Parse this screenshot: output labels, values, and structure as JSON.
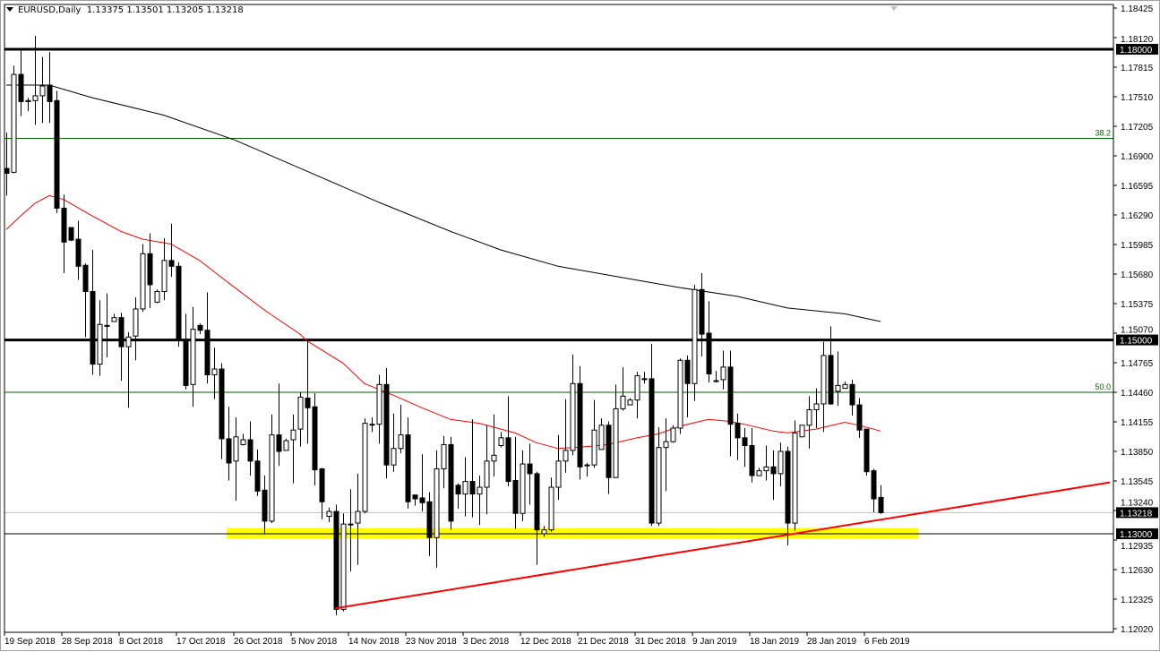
{
  "header": {
    "symbol": "EURUSD,Daily",
    "ohlc": "1.13375 1.13501 1.13205 1.13218",
    "menu_icon": "triangle-down-icon"
  },
  "chart_data": {
    "type": "candlestick",
    "title": "EURUSD,Daily",
    "ylim": [
      1.1202,
      1.18425
    ],
    "grid": false,
    "y_tick_labels": [
      "1.18425",
      "1.18120",
      "1.17815",
      "1.17510",
      "1.17205",
      "1.16900",
      "1.16595",
      "1.16290",
      "1.15985",
      "1.15680",
      "1.15375",
      "1.15070",
      "1.14765",
      "1.14460",
      "1.14155",
      "1.13850",
      "1.13545",
      "1.13240",
      "1.12935",
      "1.12630",
      "1.12325",
      "1.12020"
    ],
    "x_tick_labels": [
      {
        "bar": 0,
        "label": "19 Sep 2018"
      },
      {
        "bar": 8,
        "label": "28 Sep 2018"
      },
      {
        "bar": 16,
        "label": "8 Oct 2018"
      },
      {
        "bar": 24,
        "label": "17 Oct 2018"
      },
      {
        "bar": 32,
        "label": "26 Oct 2018"
      },
      {
        "bar": 40,
        "label": "5 Nov 2018"
      },
      {
        "bar": 48,
        "label": "14 Nov 2018"
      },
      {
        "bar": 56,
        "label": "23 Nov 2018"
      },
      {
        "bar": 64,
        "label": "3 Dec 2018"
      },
      {
        "bar": 72,
        "label": "12 Dec 2018"
      },
      {
        "bar": 80,
        "label": "21 Dec 2018"
      },
      {
        "bar": 88,
        "label": "31 Dec 2018"
      },
      {
        "bar": 96,
        "label": "9 Jan 2019"
      },
      {
        "bar": 104,
        "label": "18 Jan 2019"
      },
      {
        "bar": 112,
        "label": "28 Jan 2019"
      },
      {
        "bar": 120,
        "label": "6 Feb 2019"
      }
    ],
    "bars_ohlc": [
      [
        1.1677,
        1.1714,
        1.1649,
        1.1672
      ],
      [
        1.1673,
        1.1783,
        1.1672,
        1.1774
      ],
      [
        1.1774,
        1.1801,
        1.1731,
        1.1746
      ],
      [
        1.1746,
        1.175,
        1.1736,
        1.1747
      ],
      [
        1.1747,
        1.1814,
        1.1722,
        1.1752
      ],
      [
        1.1752,
        1.1792,
        1.1724,
        1.1762
      ],
      [
        1.1763,
        1.1797,
        1.1724,
        1.1746
      ],
      [
        1.1747,
        1.1757,
        1.1631,
        1.1636
      ],
      [
        1.1636,
        1.165,
        1.1569,
        1.1601
      ],
      [
        1.1616,
        1.1616,
        1.1602,
        1.1603
      ],
      [
        1.1604,
        1.1623,
        1.1562,
        1.1576
      ],
      [
        1.1577,
        1.1579,
        1.1503,
        1.155
      ],
      [
        1.155,
        1.1593,
        1.1464,
        1.1475
      ],
      [
        1.1475,
        1.1541,
        1.1463,
        1.1516
      ],
      [
        1.1515,
        1.1548,
        1.1482,
        1.1515
      ],
      [
        1.1519,
        1.1527,
        1.1519,
        1.1523
      ],
      [
        1.1523,
        1.1528,
        1.1458,
        1.1493
      ],
      [
        1.1493,
        1.1508,
        1.143,
        1.1503
      ],
      [
        1.1504,
        1.1544,
        1.1479,
        1.1532
      ],
      [
        1.1532,
        1.1599,
        1.1529,
        1.1589
      ],
      [
        1.1589,
        1.161,
        1.1533,
        1.1557
      ],
      [
        1.1539,
        1.1552,
        1.1538,
        1.155
      ],
      [
        1.155,
        1.1605,
        1.1541,
        1.1582
      ],
      [
        1.1582,
        1.162,
        1.1565,
        1.1576
      ],
      [
        1.1576,
        1.158,
        1.1493,
        1.15
      ],
      [
        1.15,
        1.1527,
        1.1449,
        1.1453
      ],
      [
        1.1454,
        1.1534,
        1.1431,
        1.1511
      ],
      [
        1.1515,
        1.1517,
        1.1506,
        1.151
      ],
      [
        1.151,
        1.1549,
        1.1455,
        1.1464
      ],
      [
        1.1464,
        1.1492,
        1.1439,
        1.147
      ],
      [
        1.147,
        1.1476,
        1.1377,
        1.1398
      ],
      [
        1.1398,
        1.1431,
        1.1355,
        1.1373
      ],
      [
        1.1375,
        1.142,
        1.1334,
        1.14
      ],
      [
        1.1392,
        1.1403,
        1.1391,
        1.1397
      ],
      [
        1.1397,
        1.1416,
        1.136,
        1.1375
      ],
      [
        1.1375,
        1.1387,
        1.1339,
        1.1344
      ],
      [
        1.1345,
        1.136,
        1.13,
        1.1313
      ],
      [
        1.1313,
        1.1423,
        1.1311,
        1.1402
      ],
      [
        1.1402,
        1.1455,
        1.137,
        1.1385
      ],
      [
        1.1386,
        1.1398,
        1.1386,
        1.1396
      ],
      [
        1.1397,
        1.1423,
        1.1352,
        1.1407
      ],
      [
        1.1408,
        1.1446,
        1.139,
        1.1441
      ],
      [
        1.144,
        1.15,
        1.1393,
        1.143
      ],
      [
        1.1431,
        1.1445,
        1.135,
        1.1366
      ],
      [
        1.1367,
        1.1368,
        1.1315,
        1.1333
      ],
      [
        1.1318,
        1.1327,
        1.1312,
        1.1323
      ],
      [
        1.1323,
        1.133,
        1.1216,
        1.1222
      ],
      [
        1.1222,
        1.1321,
        1.122,
        1.131
      ],
      [
        1.131,
        1.1346,
        1.1261,
        1.131
      ],
      [
        1.1311,
        1.1362,
        1.1268,
        1.1323
      ],
      [
        1.1323,
        1.1419,
        1.1321,
        1.1414
      ],
      [
        1.1413,
        1.142,
        1.1405,
        1.1413
      ],
      [
        1.1413,
        1.1464,
        1.1393,
        1.1454
      ],
      [
        1.1454,
        1.1471,
        1.1357,
        1.1371
      ],
      [
        1.1371,
        1.1424,
        1.1364,
        1.1388
      ],
      [
        1.1388,
        1.1433,
        1.1383,
        1.1402
      ],
      [
        1.1402,
        1.142,
        1.1326,
        1.1333
      ],
      [
        1.134,
        1.134,
        1.1329,
        1.1336
      ],
      [
        1.1337,
        1.1382,
        1.1323,
        1.1332
      ],
      [
        1.1333,
        1.1343,
        1.1277,
        1.1296
      ],
      [
        1.1296,
        1.1386,
        1.1265,
        1.1367
      ],
      [
        1.1367,
        1.1401,
        1.1347,
        1.1392
      ],
      [
        1.1392,
        1.14,
        1.1304,
        1.1313
      ],
      [
        1.135,
        1.1352,
        1.1326,
        1.1341
      ],
      [
        1.1341,
        1.1379,
        1.1318,
        1.1354
      ],
      [
        1.1354,
        1.1418,
        1.1317,
        1.1341
      ],
      [
        1.1341,
        1.136,
        1.1309,
        1.1348
      ],
      [
        1.1348,
        1.1412,
        1.132,
        1.1375
      ],
      [
        1.1375,
        1.1423,
        1.1359,
        1.1381
      ],
      [
        1.1391,
        1.1405,
        1.1389,
        1.1399
      ],
      [
        1.1399,
        1.1442,
        1.1349,
        1.1354
      ],
      [
        1.1355,
        1.14,
        1.1305,
        1.1321
      ],
      [
        1.1321,
        1.1386,
        1.1313,
        1.1372
      ],
      [
        1.1372,
        1.1393,
        1.133,
        1.1362
      ],
      [
        1.1362,
        1.1364,
        1.1268,
        1.1304
      ],
      [
        1.13,
        1.1308,
        1.1297,
        1.1304
      ],
      [
        1.1304,
        1.1358,
        1.1302,
        1.1348
      ],
      [
        1.1348,
        1.1402,
        1.1335,
        1.1375
      ],
      [
        1.1375,
        1.1439,
        1.1363,
        1.1386
      ],
      [
        1.1386,
        1.1485,
        1.1381,
        1.1455
      ],
      [
        1.1455,
        1.1473,
        1.1356,
        1.1369
      ],
      [
        1.1371,
        1.1373,
        1.1359,
        1.1371
      ],
      [
        1.1371,
        1.1438,
        1.1368,
        1.1407
      ],
      [
        1.1387,
        1.1419,
        1.1387,
        1.1412
      ],
      [
        1.1412,
        1.1416,
        1.1341,
        1.1358
      ],
      [
        1.1358,
        1.1454,
        1.1358,
        1.1429
      ],
      [
        1.1429,
        1.1472,
        1.1427,
        1.1442
      ],
      [
        1.1433,
        1.144,
        1.1433,
        1.1438
      ],
      [
        1.1438,
        1.1467,
        1.1419,
        1.1463
      ],
      [
        1.146,
        1.1467,
        1.1455,
        1.146
      ],
      [
        1.146,
        1.1496,
        1.1308,
        1.1311
      ],
      [
        1.1311,
        1.141,
        1.1308,
        1.1389
      ],
      [
        1.1389,
        1.1419,
        1.1344,
        1.1395
      ],
      [
        1.1395,
        1.1412,
        1.1394,
        1.1409
      ],
      [
        1.1409,
        1.1481,
        1.1403,
        1.1479
      ],
      [
        1.1479,
        1.1484,
        1.142,
        1.1455
      ],
      [
        1.1455,
        1.1557,
        1.1437,
        1.1552
      ],
      [
        1.1552,
        1.1569,
        1.1483,
        1.1506
      ],
      [
        1.1507,
        1.154,
        1.1456,
        1.1465
      ],
      [
        1.1458,
        1.1468,
        1.1456,
        1.1458
      ],
      [
        1.1459,
        1.1489,
        1.1449,
        1.1472
      ],
      [
        1.1472,
        1.1489,
        1.138,
        1.1413
      ],
      [
        1.1414,
        1.1424,
        1.1376,
        1.1399
      ],
      [
        1.1399,
        1.1409,
        1.1369,
        1.1391
      ],
      [
        1.1391,
        1.1409,
        1.1353,
        1.136
      ],
      [
        1.136,
        1.1368,
        1.136,
        1.1365
      ],
      [
        1.1365,
        1.1391,
        1.1355,
        1.1369
      ],
      [
        1.1369,
        1.1386,
        1.1335,
        1.1362
      ],
      [
        1.1362,
        1.1394,
        1.1349,
        1.1385
      ],
      [
        1.1385,
        1.139,
        1.1288,
        1.1311
      ],
      [
        1.1311,
        1.1417,
        1.1303,
        1.1404
      ],
      [
        1.14,
        1.1412,
        1.14,
        1.1412
      ],
      [
        1.1412,
        1.1442,
        1.1388,
        1.1428
      ],
      [
        1.1428,
        1.145,
        1.1409,
        1.1434
      ],
      [
        1.1434,
        1.1498,
        1.1405,
        1.1484
      ],
      [
        1.1484,
        1.1514,
        1.1433,
        1.1434
      ],
      [
        1.1447,
        1.1488,
        1.1432,
        1.1453
      ],
      [
        1.145,
        1.1457,
        1.145,
        1.1454
      ],
      [
        1.1454,
        1.1459,
        1.1422,
        1.1433
      ],
      [
        1.1433,
        1.144,
        1.1399,
        1.1407
      ],
      [
        1.1408,
        1.1408,
        1.136,
        1.1364
      ],
      [
        1.1365,
        1.1367,
        1.1322,
        1.1336
      ],
      [
        1.13375,
        1.13501,
        1.13205,
        1.13218
      ]
    ],
    "moving_average_black": [
      [
        0,
        1.1763
      ],
      [
        6,
        1.1763
      ],
      [
        12,
        1.175
      ],
      [
        22,
        1.1732
      ],
      [
        32,
        1.1706
      ],
      [
        42,
        1.1674
      ],
      [
        52,
        1.1642
      ],
      [
        62,
        1.1612
      ],
      [
        69,
        1.1593
      ],
      [
        77,
        1.1576
      ],
      [
        87,
        1.1563
      ],
      [
        94,
        1.1554
      ],
      [
        102,
        1.1545
      ],
      [
        109,
        1.1533
      ],
      [
        117,
        1.1527
      ],
      [
        122,
        1.1519
      ]
    ],
    "moving_average_red": [
      [
        0,
        1.1614
      ],
      [
        2,
        1.1628
      ],
      [
        4,
        1.1641
      ],
      [
        6,
        1.1649
      ],
      [
        8,
        1.1645
      ],
      [
        12,
        1.1628
      ],
      [
        16,
        1.1612
      ],
      [
        19,
        1.1604
      ],
      [
        23,
        1.1599
      ],
      [
        27,
        1.1582
      ],
      [
        31,
        1.1559
      ],
      [
        36,
        1.1531
      ],
      [
        41,
        1.1506
      ],
      [
        42,
        1.1499
      ],
      [
        47,
        1.1476
      ],
      [
        50,
        1.1455
      ],
      [
        54,
        1.1443
      ],
      [
        58,
        1.143
      ],
      [
        62,
        1.1418
      ],
      [
        66,
        1.1414
      ],
      [
        71,
        1.1404
      ],
      [
        74,
        1.1394
      ],
      [
        77,
        1.1388
      ],
      [
        81,
        1.139
      ],
      [
        84,
        1.1392
      ],
      [
        88,
        1.1399
      ],
      [
        91,
        1.1403
      ],
      [
        94,
        1.1411
      ],
      [
        98,
        1.1418
      ],
      [
        101,
        1.1416
      ],
      [
        103,
        1.1413
      ],
      [
        107,
        1.1406
      ],
      [
        109,
        1.1404
      ],
      [
        113,
        1.1408
      ],
      [
        117,
        1.1415
      ],
      [
        119,
        1.1412
      ],
      [
        122,
        1.1406
      ]
    ],
    "horizontal_levels": [
      {
        "price": 1.18,
        "label": "1.18000",
        "style": "thick"
      },
      {
        "price": 1.15,
        "label": "1.15000",
        "style": "thick"
      },
      {
        "price": 1.13,
        "label": "1.13000",
        "style": "thin"
      }
    ],
    "fib_levels": [
      {
        "price": 1.1708,
        "label": "38.2"
      },
      {
        "price": 1.1446,
        "label": "50.0"
      }
    ],
    "current_price": {
      "price": 1.13218,
      "label": "1.13218"
    },
    "support_zone": {
      "price_low": 1.1295,
      "price_high": 1.1306,
      "bar_start": 31,
      "bar_end": 127.5
    },
    "trendline": {
      "bar_start": 45.9,
      "price_start": 1.1223,
      "bar_end": 154,
      "price_end": 1.1353
    },
    "colors": {
      "bull": "#ffffff",
      "bear": "#000000",
      "ma_black": "#000000",
      "ma_red": "#ff0000",
      "fib": "#006400",
      "zone": "#ffff00",
      "trendline": "#ff0000",
      "current": "#c0c0c0"
    }
  }
}
